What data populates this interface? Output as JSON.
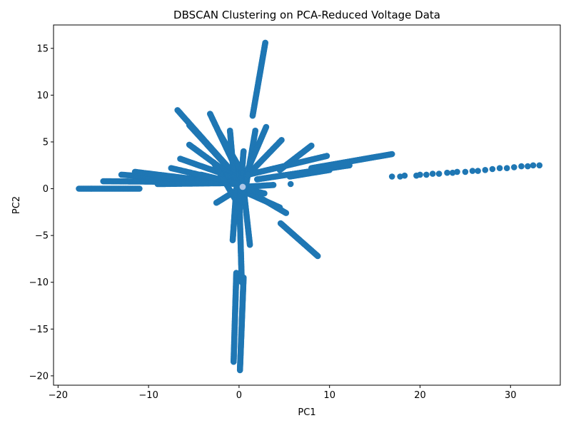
{
  "chart_data": {
    "type": "scatter",
    "title": "DBSCAN Clustering on PCA-Reduced Voltage Data",
    "xlabel": "PC1",
    "ylabel": "PC2",
    "xlim": [
      -20.5,
      35.5
    ],
    "ylim": [
      -21,
      17.5
    ],
    "xticks": [
      -20,
      -10,
      0,
      10,
      20,
      30
    ],
    "yticks": [
      -20,
      -15,
      -10,
      -5,
      0,
      5,
      10,
      15
    ],
    "xtick_labels": [
      "−20",
      "−10",
      "0",
      "10",
      "20",
      "30"
    ],
    "ytick_labels": [
      "−20",
      "−15",
      "−10",
      "−5",
      "0",
      "5",
      "10",
      "15"
    ],
    "grid": false,
    "legend": "none",
    "colors": {
      "main_cluster": "#1f77b4",
      "small_cluster": "#aec7e8"
    },
    "series": [
      {
        "cluster": "main",
        "color": "#1f77b4",
        "segments": [
          {
            "from": [
              -17.7,
              0.0
            ],
            "to": [
              -11.0,
              0.0
            ],
            "n": 60
          },
          {
            "from": [
              -15.0,
              0.8
            ],
            "to": [
              -3.0,
              0.7
            ],
            "n": 90
          },
          {
            "from": [
              -13.0,
              1.5
            ],
            "to": [
              -4.0,
              0.8
            ],
            "n": 80
          },
          {
            "from": [
              -11.5,
              1.8
            ],
            "to": [
              -0.5,
              0.5
            ],
            "n": 90
          },
          {
            "from": [
              -9.0,
              0.5
            ],
            "to": [
              -1.0,
              0.6
            ],
            "n": 60
          },
          {
            "from": [
              -7.5,
              2.2
            ],
            "to": [
              0.0,
              0.5
            ],
            "n": 60
          },
          {
            "from": [
              -6.8,
              8.4
            ],
            "to": [
              0.0,
              1.0
            ],
            "n": 90
          },
          {
            "from": [
              -5.5,
              6.8
            ],
            "to": [
              -0.5,
              1.5
            ],
            "n": 70
          },
          {
            "from": [
              -5.5,
              4.7
            ],
            "to": [
              0.0,
              0.8
            ],
            "n": 60
          },
          {
            "from": [
              -6.5,
              3.2
            ],
            "to": [
              0.0,
              1.0
            ],
            "n": 60
          },
          {
            "from": [
              -3.2,
              8.0
            ],
            "to": [
              0.0,
              1.5
            ],
            "n": 80
          },
          {
            "from": [
              -2.2,
              6.0
            ],
            "to": [
              0.5,
              1.5
            ],
            "n": 60
          },
          {
            "from": [
              -1.0,
              6.2
            ],
            "to": [
              -0.5,
              0.5
            ],
            "n": 60
          },
          {
            "from": [
              -4.2,
              1.5
            ],
            "to": [
              0.0,
              0.5
            ],
            "n": 40
          },
          {
            "from": [
              -2.8,
              2.8
            ],
            "to": [
              -0.5,
              -1.0
            ],
            "n": 40
          },
          {
            "from": [
              -2.5,
              -1.5
            ],
            "to": [
              0.0,
              0.0
            ],
            "n": 30
          },
          {
            "from": [
              2.9,
              15.6
            ],
            "to": [
              1.5,
              7.8
            ],
            "n": 80
          },
          {
            "from": [
              1.8,
              6.2
            ],
            "to": [
              0.8,
              0.5
            ],
            "n": 50
          },
          {
            "from": [
              3.0,
              6.6
            ],
            "to": [
              0.5,
              1.0
            ],
            "n": 60
          },
          {
            "from": [
              4.7,
              5.2
            ],
            "to": [
              0.5,
              1.0
            ],
            "n": 50
          },
          {
            "from": [
              8.0,
              4.6
            ],
            "to": [
              4.5,
              2.0
            ],
            "n": 60
          },
          {
            "from": [
              9.7,
              3.5
            ],
            "to": [
              1.0,
              1.5
            ],
            "n": 80
          },
          {
            "from": [
              12.2,
              2.5
            ],
            "to": [
              2.0,
              1.0
            ],
            "n": 80
          },
          {
            "from": [
              16.9,
              3.7
            ],
            "to": [
              8.0,
              2.2
            ],
            "n": 80
          },
          {
            "from": [
              10.0,
              2.0
            ],
            "to": [
              5.6,
              1.3
            ],
            "n": 40
          },
          {
            "from": [
              3.8,
              0.4
            ],
            "to": [
              0.5,
              0.2
            ],
            "n": 30
          },
          {
            "from": [
              4.5,
              -2.0
            ],
            "to": [
              1.0,
              -0.5
            ],
            "n": 40
          },
          {
            "from": [
              5.2,
              -2.6
            ],
            "to": [
              1.5,
              -0.5
            ],
            "n": 40
          },
          {
            "from": [
              8.7,
              -7.2
            ],
            "to": [
              4.6,
              -3.7
            ],
            "n": 60
          },
          {
            "from": [
              2.8,
              -0.5
            ],
            "to": [
              0.5,
              0.0
            ],
            "n": 20
          },
          {
            "from": [
              0.1,
              -19.4
            ],
            "to": [
              0.5,
              -9.5
            ],
            "n": 120
          },
          {
            "from": [
              -0.6,
              -18.5
            ],
            "to": [
              -0.3,
              -9.0
            ],
            "n": 100
          },
          {
            "from": [
              0.3,
              -10.0
            ],
            "to": [
              0.0,
              0.0
            ],
            "n": 100
          },
          {
            "from": [
              1.2,
              -6.0
            ],
            "to": [
              0.5,
              0.0
            ],
            "n": 60
          },
          {
            "from": [
              -0.7,
              -5.5
            ],
            "to": [
              -0.3,
              0.0
            ],
            "n": 60
          },
          {
            "from": [
              0.5,
              4.0
            ],
            "to": [
              0.0,
              -2.0
            ],
            "n": 60
          }
        ],
        "points": [
          [
            5.7,
            0.5
          ],
          [
            16.9,
            1.3
          ],
          [
            17.8,
            1.3
          ],
          [
            18.3,
            1.4
          ],
          [
            19.6,
            1.4
          ],
          [
            20.0,
            1.5
          ],
          [
            20.7,
            1.5
          ],
          [
            21.4,
            1.6
          ],
          [
            22.1,
            1.6
          ],
          [
            23.0,
            1.7
          ],
          [
            23.6,
            1.7
          ],
          [
            24.1,
            1.8
          ],
          [
            25.0,
            1.8
          ],
          [
            25.8,
            1.9
          ],
          [
            26.4,
            1.9
          ],
          [
            27.2,
            2.0
          ],
          [
            28.0,
            2.1
          ],
          [
            28.8,
            2.2
          ],
          [
            29.6,
            2.2
          ],
          [
            30.4,
            2.3
          ],
          [
            31.2,
            2.4
          ],
          [
            31.9,
            2.4
          ],
          [
            32.5,
            2.5
          ],
          [
            33.2,
            2.5
          ]
        ]
      },
      {
        "cluster": "small",
        "color": "#aec7e8",
        "points": [
          [
            0.4,
            0.2
          ]
        ]
      }
    ]
  }
}
